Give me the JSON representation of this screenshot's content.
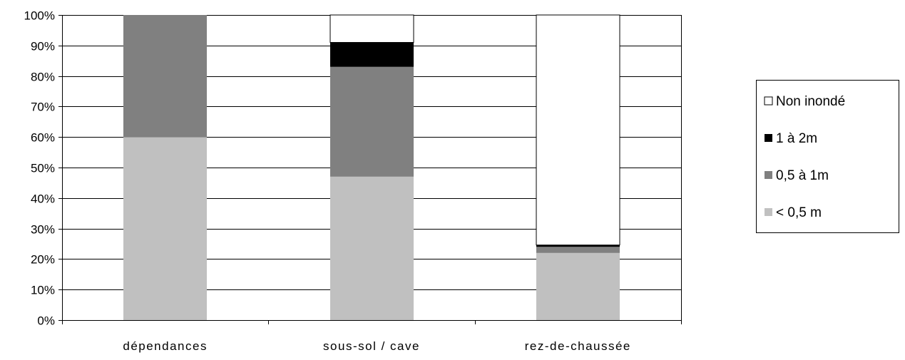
{
  "chart_data": {
    "type": "bar",
    "stacked": true,
    "normalized_percent": true,
    "categories": [
      "dépendances",
      "sous-sol / cave",
      "rez-de-chaussée"
    ],
    "series": [
      {
        "name": "< 0,5 m",
        "values": [
          60,
          47,
          22
        ],
        "color": "#c0c0c0"
      },
      {
        "name": "0,5 à 1m",
        "values": [
          40,
          36,
          2
        ],
        "color": "#808080"
      },
      {
        "name": "1 à 2m",
        "values": [
          0,
          8,
          0.6
        ],
        "color": "#000000"
      },
      {
        "name": "Non inondé",
        "values": [
          0,
          9,
          75.4
        ],
        "color": "#ffffff"
      }
    ],
    "y_ticks": [
      "0%",
      "10%",
      "20%",
      "30%",
      "40%",
      "50%",
      "60%",
      "70%",
      "80%",
      "90%",
      "100%"
    ],
    "ylim": [
      0,
      100
    ],
    "grid": true,
    "legend_position": "right",
    "legend_order": [
      "Non inondé",
      "1 à 2m",
      "0,5 à 1m",
      "< 0,5 m"
    ]
  }
}
